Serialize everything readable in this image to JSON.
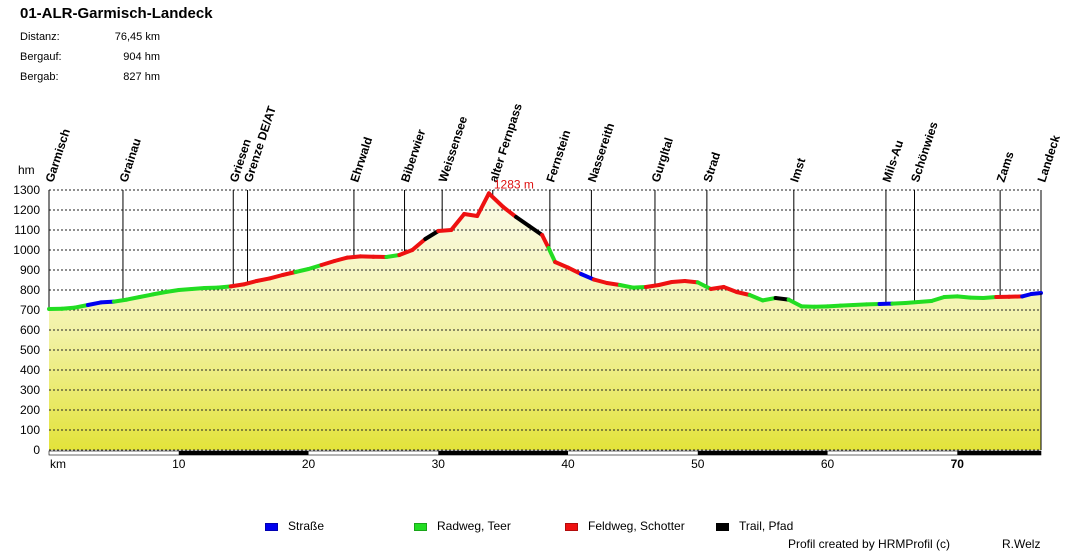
{
  "title": "01-ALR-Garmisch-Landeck",
  "stats": [
    {
      "label": "Distanz:",
      "value": "76,45 km"
    },
    {
      "label": "Bergauf:",
      "value": "904 hm"
    },
    {
      "label": "Bergab:",
      "value": "827 hm"
    }
  ],
  "chart_data": {
    "type": "area",
    "title": "01-ALR-Garmisch-Landeck",
    "xlabel": "km",
    "ylabel": "hm",
    "xlim": [
      0,
      76.45
    ],
    "ylim": [
      0,
      1300
    ],
    "xticks": [
      10,
      20,
      30,
      40,
      50,
      60,
      70
    ],
    "yticks": [
      0,
      100,
      200,
      300,
      400,
      500,
      600,
      700,
      800,
      900,
      1000,
      1100,
      1200,
      1300
    ],
    "peak_label": "1283 m",
    "peak_point": {
      "x": 33.9,
      "y": 1283
    },
    "profile": [
      [
        0,
        705,
        "road"
      ],
      [
        1,
        706,
        "bike"
      ],
      [
        2,
        712,
        "bike"
      ],
      [
        3,
        725,
        "bike"
      ],
      [
        4,
        738,
        "road"
      ],
      [
        5,
        742,
        "road"
      ],
      [
        6,
        752,
        "bike"
      ],
      [
        7,
        765,
        "bike"
      ],
      [
        8,
        778,
        "bike"
      ],
      [
        9,
        790,
        "bike"
      ],
      [
        10,
        800,
        "bike"
      ],
      [
        11,
        805,
        "bike"
      ],
      [
        12,
        810,
        "bike"
      ],
      [
        13,
        812,
        "bike"
      ],
      [
        14,
        818,
        "bike"
      ],
      [
        15,
        828,
        "gravel"
      ],
      [
        16,
        845,
        "gravel"
      ],
      [
        17,
        858,
        "gravel"
      ],
      [
        18,
        875,
        "gravel"
      ],
      [
        19,
        890,
        "gravel"
      ],
      [
        20,
        905,
        "bike"
      ],
      [
        21,
        925,
        "bike"
      ],
      [
        22,
        945,
        "gravel"
      ],
      [
        23,
        962,
        "gravel"
      ],
      [
        24,
        968,
        "gravel"
      ],
      [
        25,
        966,
        "gravel"
      ],
      [
        26,
        965,
        "gravel"
      ],
      [
        27,
        975,
        "bike"
      ],
      [
        28,
        1000,
        "gravel"
      ],
      [
        29,
        1055,
        "gravel"
      ],
      [
        30,
        1095,
        "trail"
      ],
      [
        31,
        1100,
        "gravel"
      ],
      [
        32,
        1180,
        "gravel"
      ],
      [
        33,
        1170,
        "gravel"
      ],
      [
        33.9,
        1283,
        "gravel"
      ],
      [
        35,
        1215,
        "gravel"
      ],
      [
        36,
        1165,
        "gravel"
      ],
      [
        37,
        1120,
        "trail"
      ],
      [
        38,
        1075,
        "trail"
      ],
      [
        38.5,
        1010,
        "gravel"
      ],
      [
        39,
        940,
        "bike"
      ],
      [
        40,
        912,
        "gravel"
      ],
      [
        41,
        880,
        "gravel"
      ],
      [
        42,
        852,
        "road"
      ],
      [
        43,
        835,
        "gravel"
      ],
      [
        44,
        825,
        "gravel"
      ],
      [
        45,
        812,
        "bike"
      ],
      [
        46,
        815,
        "bike"
      ],
      [
        47,
        825,
        "gravel"
      ],
      [
        48,
        840,
        "gravel"
      ],
      [
        49,
        845,
        "gravel"
      ],
      [
        50,
        838,
        "gravel"
      ],
      [
        51,
        805,
        "bike"
      ],
      [
        52,
        815,
        "gravel"
      ],
      [
        53,
        790,
        "gravel"
      ],
      [
        54,
        775,
        "gravel"
      ],
      [
        55,
        748,
        "bike"
      ],
      [
        56,
        760,
        "bike"
      ],
      [
        57,
        752,
        "trail"
      ],
      [
        58,
        718,
        "bike"
      ],
      [
        59,
        716,
        "bike"
      ],
      [
        60,
        718,
        "bike"
      ],
      [
        61,
        722,
        "bike"
      ],
      [
        62,
        725,
        "bike"
      ],
      [
        63,
        728,
        "bike"
      ],
      [
        64,
        730,
        "bike"
      ],
      [
        65,
        732,
        "road"
      ],
      [
        66,
        735,
        "bike"
      ],
      [
        67,
        740,
        "bike"
      ],
      [
        68,
        745,
        "bike"
      ],
      [
        69,
        765,
        "bike"
      ],
      [
        70,
        768,
        "bike"
      ],
      [
        71,
        762,
        "bike"
      ],
      [
        72,
        760,
        "bike"
      ],
      [
        73,
        765,
        "bike"
      ],
      [
        74,
        766,
        "gravel"
      ],
      [
        75,
        768,
        "gravel"
      ],
      [
        75.7,
        780,
        "road"
      ],
      [
        76.45,
        785,
        "road"
      ]
    ],
    "waypoints": [
      {
        "name": "Garmisch",
        "km": 0
      },
      {
        "name": "Grainau",
        "km": 5.7
      },
      {
        "name": "Griesen",
        "km": 14.2
      },
      {
        "name": "Grenze DE/AT",
        "km": 15.3
      },
      {
        "name": "Ehrwald",
        "km": 23.5
      },
      {
        "name": "Biberwier",
        "km": 27.4
      },
      {
        "name": "Weissensee",
        "km": 30.3
      },
      {
        "name": "alter Fernpass",
        "km": 34.2
      },
      {
        "name": "Fernstein",
        "km": 38.6
      },
      {
        "name": "Nassereith",
        "km": 41.8
      },
      {
        "name": "Gurgltal",
        "km": 46.7
      },
      {
        "name": "Strad",
        "km": 50.7
      },
      {
        "name": "Imst",
        "km": 57.4
      },
      {
        "name": "Mils-Au",
        "km": 64.5
      },
      {
        "name": "Schönwies",
        "km": 66.7
      },
      {
        "name": "Zams",
        "km": 73.3
      },
      {
        "name": "Landeck",
        "km": 76.45
      }
    ],
    "surface_colors": {
      "road": "#0000ee",
      "bike": "#22dd22",
      "gravel": "#ee1111",
      "trail": "#000000"
    },
    "legend": [
      {
        "key": "road",
        "label": "Straße"
      },
      {
        "key": "bike",
        "label": "Radweg, Teer"
      },
      {
        "key": "gravel",
        "label": "Feldweg, Schotter"
      },
      {
        "key": "trail",
        "label": "Trail, Pfad"
      }
    ],
    "legend_position": "bottom"
  },
  "footer": {
    "credit": "Profil created by HRMProfil (c)",
    "author": "R.Welz"
  }
}
